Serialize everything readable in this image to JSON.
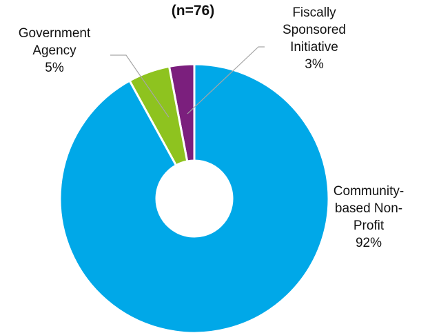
{
  "chart_data": {
    "type": "pie",
    "title": "(n=76)",
    "slices": [
      {
        "label_lines": [
          "Community-",
          "based Non-",
          "Profit"
        ],
        "pct_label": "92%",
        "value": 92,
        "color": "#00a8e8"
      },
      {
        "label_lines": [
          "Government",
          "Agency"
        ],
        "pct_label": "5%",
        "value": 5,
        "color": "#8ec31f"
      },
      {
        "label_lines": [
          "Fiscally",
          "Sponsored",
          "Initiative"
        ],
        "pct_label": "3%",
        "value": 3,
        "color": "#7b1f7d"
      }
    ]
  }
}
